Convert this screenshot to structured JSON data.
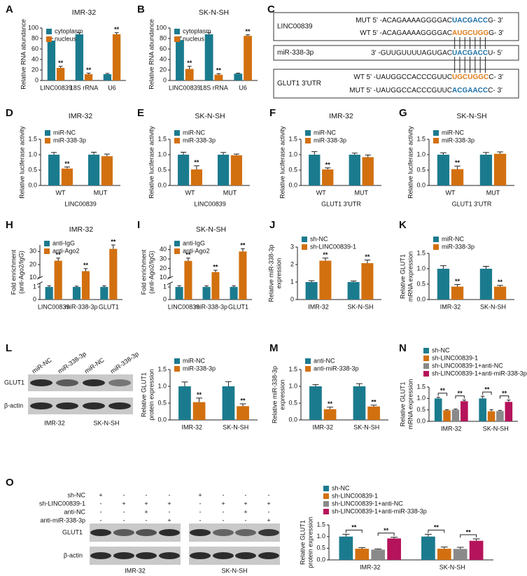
{
  "chart_data": [
    {
      "panel": "A",
      "type": "bar",
      "title": "IMR-32",
      "y_label": [
        "Relative RNA abundance"
      ],
      "categories": [
        "LINC00839",
        "18S rRNA",
        "U6"
      ],
      "series": [
        {
          "name": "cytoplasm",
          "color": "#1b7b8e",
          "values": [
            76,
            88,
            12
          ],
          "errors": [
            4,
            3,
            1.5
          ],
          "stars": [
            null,
            null,
            null
          ]
        },
        {
          "name": "nucleus",
          "color": "#d2700f",
          "values": [
            24,
            12,
            88
          ],
          "errors": [
            3,
            2,
            3
          ],
          "stars": [
            "**",
            "**",
            "**"
          ]
        }
      ],
      "ylim": [
        0,
        100
      ],
      "yticks": [
        0,
        20,
        40,
        60,
        80,
        100
      ],
      "legend": "upper left"
    },
    {
      "panel": "B",
      "type": "bar",
      "title": "SK-N-SH",
      "y_label": [
        "Relative RNA abundance"
      ],
      "categories": [
        "LINC00839",
        "18S rRNA",
        "U6"
      ],
      "series": [
        {
          "name": "cytoplasm",
          "color": "#1b7b8e",
          "values": [
            77,
            88,
            13
          ],
          "errors": [
            6,
            3,
            1
          ],
          "stars": [
            null,
            null,
            null
          ]
        },
        {
          "name": "nucleus",
          "color": "#d2700f",
          "values": [
            22,
            11,
            85
          ],
          "errors": [
            5,
            2,
            2
          ],
          "stars": [
            "**",
            "**",
            "**"
          ]
        }
      ],
      "ylim": [
        0,
        100
      ],
      "yticks": [
        0,
        20,
        40,
        60,
        80,
        100
      ],
      "legend": "upper left"
    },
    {
      "panel": "D",
      "type": "bar",
      "title": "IMR-32",
      "y_label": [
        "Relative luciferase activity"
      ],
      "x_label": "LINC00839",
      "categories": [
        "WT",
        "MUT"
      ],
      "series": [
        {
          "name": "miR-NC",
          "color": "#1b7b8e",
          "values": [
            1,
            1
          ],
          "errors": [
            0.07,
            0.08
          ],
          "stars": [
            null,
            null
          ]
        },
        {
          "name": "miR-338-3p",
          "color": "#d2700f",
          "values": [
            0.55,
            0.95
          ],
          "errors": [
            0.05,
            0.07
          ],
          "stars": [
            "**",
            null
          ]
        }
      ],
      "ylim": [
        0,
        1.5
      ],
      "yticks": [
        {
          "value": 0,
          "label": "0.0"
        },
        0.5,
        {
          "value": 1,
          "label": "1.0"
        },
        1.5
      ],
      "legend": "upper left"
    },
    {
      "panel": "E",
      "type": "bar",
      "title": "SK-N-SH",
      "y_label": [
        "Relative luciferase activity"
      ],
      "x_label": "LINC00839",
      "categories": [
        "WT",
        "MUT"
      ],
      "series": [
        {
          "name": "miR-NC",
          "color": "#1b7b8e",
          "values": [
            1,
            1
          ],
          "errors": [
            0.08,
            0.07
          ],
          "stars": [
            null,
            null
          ]
        },
        {
          "name": "miR-338-3p",
          "color": "#d2700f",
          "values": [
            0.52,
            0.98
          ],
          "errors": [
            0.12,
            0.04
          ],
          "stars": [
            "**",
            null
          ]
        }
      ],
      "ylim": [
        0,
        1.5
      ],
      "yticks": [
        {
          "value": 0,
          "label": "0.0"
        },
        0.5,
        {
          "value": 1,
          "label": "1.0"
        },
        1.5
      ],
      "legend": "upper left"
    },
    {
      "panel": "F",
      "type": "bar",
      "title": "IMR-32",
      "y_label": [
        "Relative luciferase activity"
      ],
      "x_label": "GLUT1 3'UTR",
      "categories": [
        "WT",
        "MUT"
      ],
      "series": [
        {
          "name": "miR-NC",
          "color": "#1b7b8e",
          "values": [
            1,
            1
          ],
          "errors": [
            0.1,
            0.05
          ],
          "stars": [
            null,
            null
          ]
        },
        {
          "name": "miR-338-3p",
          "color": "#d2700f",
          "values": [
            0.52,
            0.92
          ],
          "errors": [
            0.05,
            0.07
          ],
          "stars": [
            "**",
            null
          ]
        }
      ],
      "ylim": [
        0,
        1.5
      ],
      "yticks": [
        {
          "value": 0,
          "label": "0.0"
        },
        0.5,
        {
          "value": 1,
          "label": "1.0"
        },
        1.5
      ],
      "legend": "upper left"
    },
    {
      "panel": "G",
      "type": "bar",
      "title": "SK-N-SH",
      "y_label": [
        "Relative luciferase activity"
      ],
      "x_label": "GLUT1 3'UTR",
      "categories": [
        "WT",
        "MUT"
      ],
      "series": [
        {
          "name": "miR-NC",
          "color": "#1b7b8e",
          "values": [
            1,
            1
          ],
          "errors": [
            0.06,
            0.07
          ],
          "stars": [
            null,
            null
          ]
        },
        {
          "name": "miR-338-3p",
          "color": "#d2700f",
          "values": [
            0.53,
            1.03
          ],
          "errors": [
            0.1,
            0.06
          ],
          "stars": [
            "**",
            null
          ]
        }
      ],
      "ylim": [
        0,
        1.5
      ],
      "yticks": [
        {
          "value": 0,
          "label": "0.0"
        },
        0.5,
        {
          "value": 1,
          "label": "1.0"
        },
        1.5
      ],
      "legend": "upper left"
    },
    {
      "panel": "H",
      "type": "bar",
      "title": "IMR-32",
      "y_label": [
        "Fold enrichment",
        "(anti-Ago2/IgG)"
      ],
      "categories": [
        "LINC00839",
        "miR-338-3p",
        "GLUT1"
      ],
      "series": [
        {
          "name": "anti-IgG",
          "color": "#1b7b8e",
          "values": [
            1,
            1,
            1
          ],
          "errors": [
            0.1,
            0.06,
            0.08
          ],
          "stars": [
            null,
            null,
            null
          ]
        },
        {
          "name": "anti-Ago2",
          "color": "#d2700f",
          "values": [
            23,
            15,
            32
          ],
          "errors": [
            2,
            2,
            3
          ],
          "stars": [
            "**",
            "**",
            "**"
          ]
        }
      ],
      "ylim": [
        0,
        1.3
      ],
      "yticks": [
        0,
        1
      ],
      "y_break": {
        "ylim": [
          10,
          35
        ],
        "yticks": [
          10,
          20,
          30
        ]
      },
      "legend": "upper left"
    },
    {
      "panel": "I",
      "type": "bar",
      "title": "SK-N-SH",
      "y_label": [
        "Fold enrichment",
        "(anti-Ago2/IgG)"
      ],
      "categories": [
        "LINC00839",
        "miR-338-3p",
        "GLUT1"
      ],
      "series": [
        {
          "name": "anti-IgG",
          "color": "#1b7b8e",
          "values": [
            1,
            1,
            1
          ],
          "errors": [
            0.1,
            0.08,
            0.08
          ],
          "stars": [
            null,
            null,
            null
          ]
        },
        {
          "name": "anti-Ago2",
          "color": "#d2700f",
          "values": [
            28,
            16,
            38
          ],
          "errors": [
            3,
            2,
            3
          ],
          "stars": [
            "**",
            "**",
            "**"
          ]
        }
      ],
      "ylim": [
        0,
        1.3
      ],
      "yticks": [
        0,
        1
      ],
      "y_break": {
        "ylim": [
          10,
          45
        ],
        "yticks": [
          10,
          20,
          30,
          40
        ]
      },
      "legend": "upper left"
    },
    {
      "panel": "J",
      "type": "bar",
      "y_label": [
        "Relative miR-338-3p",
        "expression"
      ],
      "categories": [
        "IMR-32",
        "SK-N-SH"
      ],
      "series": [
        {
          "name": "sh-NC",
          "color": "#1b7b8e",
          "values": [
            1,
            1
          ],
          "errors": [
            0.08,
            0.06
          ],
          "stars": [
            null,
            null
          ]
        },
        {
          "name": "sh-LINC00839-1",
          "color": "#d2700f",
          "values": [
            2.22,
            2.08
          ],
          "errors": [
            0.15,
            0.18
          ],
          "stars": [
            "**",
            "**"
          ]
        }
      ],
      "ylim": [
        0,
        3
      ],
      "yticks": [
        0,
        1,
        2,
        3
      ],
      "legend": "upper left"
    },
    {
      "panel": "K",
      "type": "bar",
      "y_label": [
        "Relative GLUT1",
        "mRNA expression"
      ],
      "categories": [
        "IMR-32",
        "SK-N-SH"
      ],
      "series": [
        {
          "name": "miR-NC",
          "color": "#1b7b8e",
          "values": [
            1,
            1
          ],
          "errors": [
            0.1,
            0.08
          ],
          "stars": [
            null,
            null
          ]
        },
        {
          "name": "miR-338-3p",
          "color": "#d2700f",
          "values": [
            0.42,
            0.42
          ],
          "errors": [
            0.07,
            0.04
          ],
          "stars": [
            "**",
            "**"
          ]
        }
      ],
      "ylim": [
        0,
        1.5
      ],
      "yticks": [
        {
          "value": 0,
          "label": "0.0"
        },
        0.5,
        {
          "value": 1,
          "label": "1.0"
        },
        1.5
      ],
      "legend": "upper left"
    },
    {
      "type": "bar",
      "y_label": [
        "Relative GLUT1",
        "protein expression"
      ],
      "categories": [
        "IMR-32",
        "SK-N-SH"
      ],
      "series": [
        {
          "name": "miR-NC",
          "color": "#1b7b8e",
          "values": [
            1,
            1
          ],
          "errors": [
            0.13,
            0.14
          ],
          "stars": [
            null,
            null
          ]
        },
        {
          "name": "miR-338-3p",
          "color": "#d2700f",
          "values": [
            0.53,
            0.41
          ],
          "errors": [
            0.12,
            0.07
          ],
          "stars": [
            "**",
            "**"
          ]
        }
      ],
      "ylim": [
        0,
        1.5
      ],
      "yticks": [
        {
          "value": 0,
          "label": "0.0"
        },
        0.5,
        {
          "value": 1,
          "label": "1.0"
        },
        1.5
      ],
      "legend": "upper left"
    },
    {
      "panel": "M",
      "type": "bar",
      "y_label": [
        "Relative miR-338-3p",
        "expression"
      ],
      "categories": [
        "IMR-32",
        "SK-N-SH"
      ],
      "series": [
        {
          "name": "anti-NC",
          "color": "#1b7b8e",
          "values": [
            1,
            1
          ],
          "errors": [
            0.05,
            0.08
          ],
          "stars": [
            null,
            null
          ]
        },
        {
          "name": "anti-miR-338-3p",
          "color": "#d2700f",
          "values": [
            0.32,
            0.4
          ],
          "errors": [
            0.06,
            0.04
          ],
          "stars": [
            "**",
            "**"
          ]
        }
      ],
      "ylim": [
        0,
        1.5
      ],
      "yticks": [
        {
          "value": 0,
          "label": "0.0"
        },
        0.5,
        {
          "value": 1,
          "label": "1.0"
        },
        1.5
      ],
      "legend": "upper left"
    },
    {
      "panel": "N",
      "type": "bar",
      "y_label": [
        "Relative GLUT1",
        "mRNA expression"
      ],
      "categories": [
        "IMR-32",
        "SK-N-SH"
      ],
      "stars_style": "bracket",
      "series": [
        {
          "name": "sh-NC",
          "color": "#1b7b8e",
          "values": [
            1,
            1
          ],
          "errors": [
            0.05,
            0.1
          ],
          "stars": [
            null,
            null
          ]
        },
        {
          "name": "sh-LINC00839-1",
          "color": "#d2700f",
          "values": [
            0.48,
            0.44
          ],
          "errors": [
            0.03,
            0.07
          ],
          "stars": [
            "**",
            "**"
          ]
        },
        {
          "name": "sh-LINC00839-1+anti-NC",
          "color": "#8a8a8a",
          "values": [
            0.51,
            0.45
          ],
          "errors": [
            0.03,
            0.03
          ],
          "stars": [
            null,
            null
          ]
        },
        {
          "name": "sh-LINC00839-1+anti-miR-338-3p",
          "color": "#b5135b",
          "values": [
            0.88,
            0.85
          ],
          "errors": [
            0.05,
            0.08
          ],
          "stars": [
            "**",
            "**"
          ]
        }
      ],
      "ylim": [
        0,
        1.5
      ],
      "yticks": [
        {
          "value": 0,
          "label": "0.0"
        },
        0.5,
        {
          "value": 1,
          "label": "1.0"
        },
        1.5
      ],
      "legend": "above"
    },
    {
      "type": "bar",
      "y_label": [
        "Relative GLUT1",
        "protein expression"
      ],
      "categories": [
        "IMR-32",
        "SK-N-SH"
      ],
      "stars_style": "bracket",
      "series": [
        {
          "name": "sh-NC",
          "color": "#1b7b8e",
          "values": [
            1,
            1
          ],
          "errors": [
            0.1,
            0.1
          ],
          "stars": [
            null,
            null
          ]
        },
        {
          "name": "sh-LINC00839-1",
          "color": "#d2700f",
          "values": [
            0.48,
            0.48
          ],
          "errors": [
            0.05,
            0.07
          ],
          "stars": [
            "**",
            "**"
          ]
        },
        {
          "name": "sh-LINC00839-1+anti-NC",
          "color": "#8a8a8a",
          "values": [
            0.44,
            0.47
          ],
          "errors": [
            0.03,
            0.07
          ],
          "stars": [
            null,
            null
          ]
        },
        {
          "name": "sh-LINC00839-1+anti-miR-338-3p",
          "color": "#b5135b",
          "values": [
            0.92,
            0.82
          ],
          "errors": [
            0.05,
            0.08
          ],
          "stars": [
            "**",
            "**"
          ]
        }
      ],
      "ylim": [
        0,
        1.5
      ],
      "yticks": [
        {
          "value": 0,
          "label": "0.0"
        },
        0.5,
        {
          "value": 1,
          "label": "1.0"
        },
        1.5
      ],
      "legend": "above"
    }
  ],
  "sequence_panel": {
    "panel": "C",
    "boxes": [
      {
        "name": "LINC00839",
        "rows": [
          {
            "parts": [
              "MUT 5' -ACAGAAAAGGGGAC",
              "UACGACC",
              "G- 3'"
            ],
            "highlight_color": "#1b6fa6"
          },
          {
            "parts": [
              "WT 5' -ACAGAAAAGGGGAC",
              "AUGCUGG",
              "G- 3'"
            ],
            "highlight_color": "#e07b17"
          }
        ]
      },
      {
        "name": "miR-338-3p",
        "rows": [
          {
            "parts": [
              "3' -GUUGUUUUAGUGAC",
              "UACGACC",
              "U- 5'"
            ],
            "highlight_color": "#1b6fa6"
          }
        ]
      },
      {
        "name": "GLUT1 3'UTR",
        "rows": [
          {
            "parts": [
              "WT 5' -UAUGGCCACCCGUUC",
              "UGCUGGC",
              "C- 3'"
            ],
            "highlight_color": "#e07b17"
          },
          {
            "parts": [
              "MUT 5' -UAUGGCCACCCGUUC",
              "ACGAACC",
              "C- 3'"
            ],
            "highlight_color": "#1b6fa6"
          }
        ]
      }
    ]
  },
  "blots": [
    {
      "panel": "L",
      "lanes": [
        "miR-NC",
        "miR-338-3p",
        "miR-NC",
        "miR-338-3p"
      ],
      "rows": [
        "GLUT1",
        "β-actin"
      ],
      "groups": [
        "IMR-32",
        "SK-N-SH"
      ]
    },
    {
      "panel": "O",
      "conditions": [
        {
          "name": "sh-NC",
          "marks": [
            "+",
            "-",
            "-",
            "-",
            "+",
            "-",
            "-",
            "-"
          ]
        },
        {
          "name": "sh-LINC00839-1",
          "marks": [
            "-",
            "+",
            "+",
            "+",
            "-",
            "+",
            "+",
            "+"
          ]
        },
        {
          "name": "anti-NC",
          "marks": [
            "-",
            "-",
            "+",
            "-",
            "-",
            "-",
            "+",
            "-"
          ]
        },
        {
          "name": "anti-miR-338-3p",
          "marks": [
            "-",
            "-",
            "-",
            "+",
            "-",
            "-",
            "-",
            "+"
          ]
        }
      ],
      "rows": [
        "GLUT1",
        "β-actin"
      ],
      "groups": [
        "IMR-32",
        "SK-N-SH"
      ]
    }
  ]
}
